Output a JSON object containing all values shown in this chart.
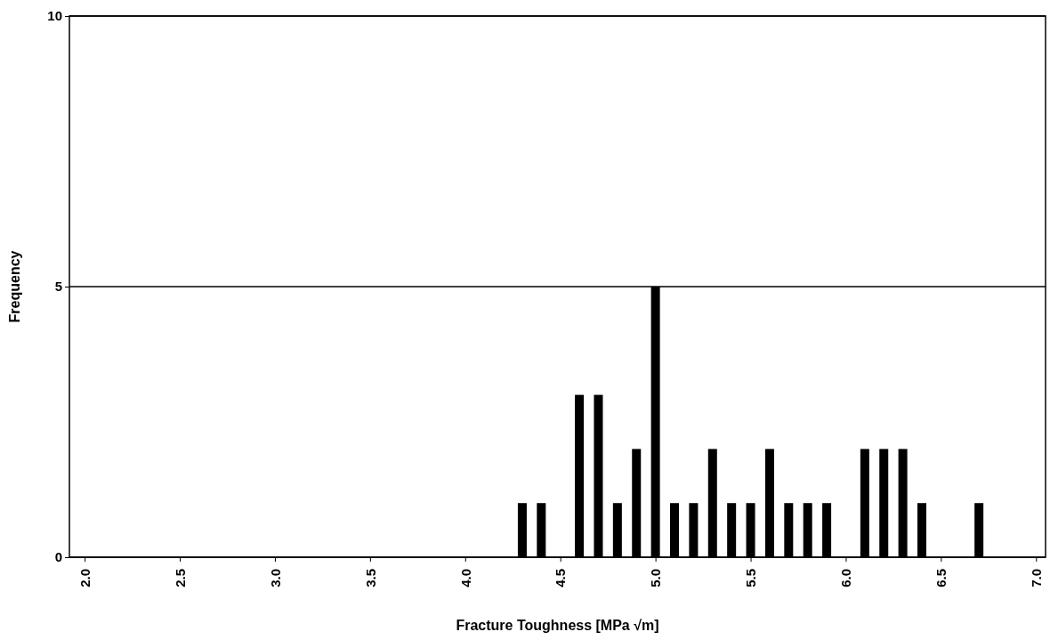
{
  "chart_data": {
    "type": "bar",
    "xlabel": "Fracture Toughness  [MPa √m]",
    "ylabel": "Frequency",
    "x": [
      4.3,
      4.4,
      4.6,
      4.7,
      4.8,
      4.9,
      5.0,
      5.1,
      5.2,
      5.3,
      5.4,
      5.5,
      5.6,
      5.7,
      5.8,
      5.9,
      6.1,
      6.2,
      6.3,
      6.4,
      6.7
    ],
    "values": [
      1,
      1,
      3,
      3,
      1,
      2,
      5,
      1,
      1,
      2,
      1,
      1,
      2,
      1,
      1,
      1,
      2,
      2,
      2,
      1,
      1
    ],
    "color": "#000000",
    "xlim": [
      1.92,
      7.05
    ],
    "ylim": [
      0,
      10
    ],
    "xticks": [
      {
        "value": 2.0,
        "label": "2.0"
      },
      {
        "value": 2.5,
        "label": "2.5"
      },
      {
        "value": 3.0,
        "label": "3.0"
      },
      {
        "value": 3.5,
        "label": "3.5"
      },
      {
        "value": 4.0,
        "label": "4.0"
      },
      {
        "value": 4.5,
        "label": "4.5"
      },
      {
        "value": 5.0,
        "label": "5.0"
      },
      {
        "value": 5.5,
        "label": "5.5"
      },
      {
        "value": 6.0,
        "label": "6.0"
      },
      {
        "value": 6.5,
        "label": "6.5"
      },
      {
        "value": 7.0,
        "label": "7.0"
      }
    ],
    "yticks": [
      0,
      5,
      10
    ],
    "grid": "y"
  }
}
